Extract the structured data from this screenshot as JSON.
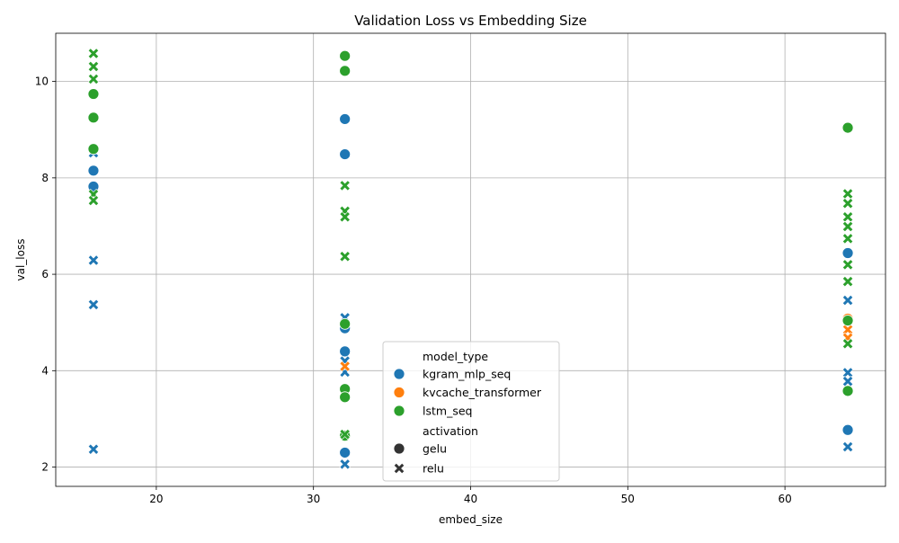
{
  "chart_data": {
    "type": "scatter",
    "title": "Validation Loss vs Embedding Size",
    "xlabel": "embed_size",
    "ylabel": "val_loss",
    "xlim": [
      13.6,
      66.4
    ],
    "ylim": [
      1.6,
      11.0
    ],
    "xticks": [
      20,
      30,
      40,
      50,
      60
    ],
    "yticks": [
      2,
      4,
      6,
      8,
      10
    ],
    "grid": true,
    "legend": {
      "placement": "lower-center",
      "hue_title": "model_type",
      "style_title": "activation",
      "hue_entries": [
        "kgram_mlp_seq",
        "kvcache_transformer",
        "lstm_seq"
      ],
      "style_entries": [
        "gelu",
        "relu"
      ]
    },
    "colors": {
      "kgram_mlp_seq": "#1f77b4",
      "kvcache_transformer": "#ff7f0e",
      "lstm_seq": "#2ca02c"
    },
    "series": [
      {
        "name": "kgram_mlp_seq",
        "activation": "gelu",
        "points": [
          {
            "x": 16,
            "y": 8.15
          },
          {
            "x": 16,
            "y": 7.82
          },
          {
            "x": 32,
            "y": 9.22
          },
          {
            "x": 32,
            "y": 8.49
          },
          {
            "x": 32,
            "y": 4.88
          },
          {
            "x": 32,
            "y": 4.4
          },
          {
            "x": 32,
            "y": 2.3
          },
          {
            "x": 64,
            "y": 6.44
          },
          {
            "x": 64,
            "y": 2.77
          }
        ]
      },
      {
        "name": "kgram_mlp_seq",
        "activation": "relu",
        "points": [
          {
            "x": 16,
            "y": 8.52
          },
          {
            "x": 16,
            "y": 6.29
          },
          {
            "x": 16,
            "y": 5.37
          },
          {
            "x": 16,
            "y": 2.37
          },
          {
            "x": 32,
            "y": 5.1
          },
          {
            "x": 32,
            "y": 4.2
          },
          {
            "x": 32,
            "y": 3.97
          },
          {
            "x": 32,
            "y": 2.06
          },
          {
            "x": 64,
            "y": 5.46
          },
          {
            "x": 64,
            "y": 3.96
          },
          {
            "x": 64,
            "y": 3.78
          },
          {
            "x": 64,
            "y": 2.42
          }
        ]
      },
      {
        "name": "kvcache_transformer",
        "activation": "gelu",
        "points": [
          {
            "x": 64,
            "y": 5.08
          }
        ]
      },
      {
        "name": "kvcache_transformer",
        "activation": "relu",
        "points": [
          {
            "x": 32,
            "y": 4.09
          },
          {
            "x": 64,
            "y": 4.85
          },
          {
            "x": 64,
            "y": 4.68
          }
        ]
      },
      {
        "name": "lstm_seq",
        "activation": "gelu",
        "points": [
          {
            "x": 16,
            "y": 9.74
          },
          {
            "x": 16,
            "y": 9.25
          },
          {
            "x": 16,
            "y": 8.6
          },
          {
            "x": 32,
            "y": 10.53
          },
          {
            "x": 32,
            "y": 10.22
          },
          {
            "x": 32,
            "y": 4.97
          },
          {
            "x": 32,
            "y": 3.62
          },
          {
            "x": 32,
            "y": 3.45
          },
          {
            "x": 32,
            "y": 2.65
          },
          {
            "x": 64,
            "y": 9.04
          },
          {
            "x": 64,
            "y": 5.04
          },
          {
            "x": 64,
            "y": 3.58
          }
        ]
      },
      {
        "name": "lstm_seq",
        "activation": "relu",
        "points": [
          {
            "x": 16,
            "y": 10.58
          },
          {
            "x": 16,
            "y": 10.31
          },
          {
            "x": 16,
            "y": 10.05
          },
          {
            "x": 16,
            "y": 7.66
          },
          {
            "x": 16,
            "y": 7.53
          },
          {
            "x": 32,
            "y": 7.84
          },
          {
            "x": 32,
            "y": 7.31
          },
          {
            "x": 32,
            "y": 7.19
          },
          {
            "x": 32,
            "y": 6.37
          },
          {
            "x": 32,
            "y": 2.68
          },
          {
            "x": 64,
            "y": 7.67
          },
          {
            "x": 64,
            "y": 7.47
          },
          {
            "x": 64,
            "y": 7.19
          },
          {
            "x": 64,
            "y": 6.99
          },
          {
            "x": 64,
            "y": 6.74
          },
          {
            "x": 64,
            "y": 6.2
          },
          {
            "x": 64,
            "y": 5.85
          },
          {
            "x": 64,
            "y": 4.56
          }
        ]
      }
    ]
  }
}
